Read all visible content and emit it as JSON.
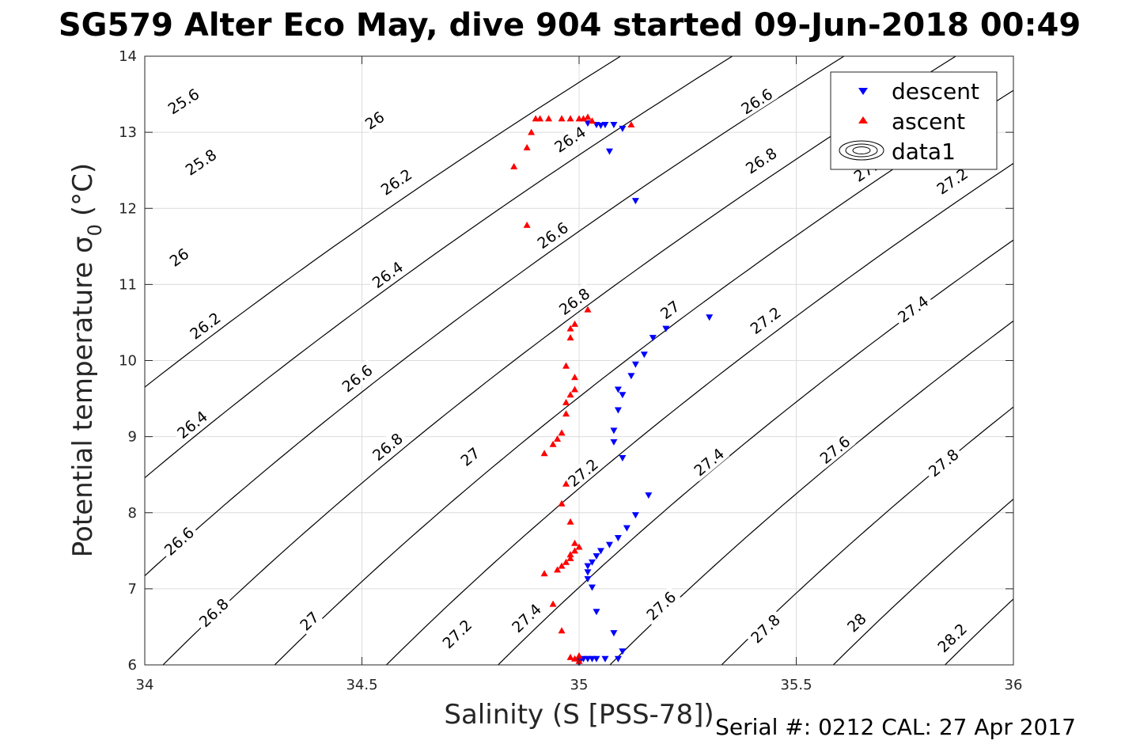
{
  "chart_data": {
    "type": "scatter",
    "title": "SG579 Alter Eco May, dive 904 started 09-Jun-2018 00:49",
    "xlabel": "Salinity (S [PSS-78])",
    "ylabel_main": "Potential temperature σ",
    "ylabel_sub": "0",
    "ylabel_unit": "(°C)",
    "footer": "Serial #: 0212  CAL: 27 Apr 2017",
    "xlim": [
      34,
      36
    ],
    "ylim": [
      6,
      14
    ],
    "xticks": [
      "34",
      "34.5",
      "35",
      "35.5",
      "36"
    ],
    "yticks": [
      "6",
      "7",
      "8",
      "9",
      "10",
      "11",
      "12",
      "13",
      "14"
    ],
    "grid": true,
    "legend_position": "top-right",
    "legend": [
      {
        "label": "descent",
        "marker": "triangle-down",
        "color": "#0000ff"
      },
      {
        "label": "ascent",
        "marker": "triangle-up",
        "color": "#ff0000"
      },
      {
        "label": "data1",
        "marker": "contour",
        "color": "#000000"
      }
    ],
    "contours": {
      "levels": [
        25.6,
        25.8,
        26,
        26.2,
        26.4,
        26.6,
        26.8,
        27,
        27.2,
        27.4,
        27.6,
        27.8,
        28,
        28.2
      ],
      "labels": [
        {
          "text": "25.6",
          "x": 34.09,
          "y": 13.4
        },
        {
          "text": "25.8",
          "x": 34.13,
          "y": 12.6
        },
        {
          "text": "26",
          "x": 34.08,
          "y": 11.35
        },
        {
          "text": "26.2",
          "x": 34.14,
          "y": 10.45
        },
        {
          "text": "26.4",
          "x": 34.11,
          "y": 9.15
        },
        {
          "text": "26.6",
          "x": 34.08,
          "y": 7.62
        },
        {
          "text": "26.8",
          "x": 34.16,
          "y": 6.68
        },
        {
          "text": "26",
          "x": 34.53,
          "y": 13.15
        },
        {
          "text": "26.2",
          "x": 34.58,
          "y": 12.34
        },
        {
          "text": "26.4",
          "x": 34.56,
          "y": 11.12
        },
        {
          "text": "26.6",
          "x": 34.49,
          "y": 9.76
        },
        {
          "text": "26.8",
          "x": 34.56,
          "y": 8.86
        },
        {
          "text": "27",
          "x": 34.38,
          "y": 6.57
        },
        {
          "text": "26.4",
          "x": 34.98,
          "y": 12.9
        },
        {
          "text": "26.6",
          "x": 34.94,
          "y": 11.64
        },
        {
          "text": "26.8",
          "x": 34.99,
          "y": 10.77
        },
        {
          "text": "27",
          "x": 34.75,
          "y": 8.73
        },
        {
          "text": "27.2",
          "x": 34.72,
          "y": 6.4
        },
        {
          "text": "26.6",
          "x": 35.41,
          "y": 13.4
        },
        {
          "text": "26.8",
          "x": 35.42,
          "y": 12.62
        },
        {
          "text": "27",
          "x": 35.21,
          "y": 10.66
        },
        {
          "text": "27.2",
          "x": 35.01,
          "y": 8.52
        },
        {
          "text": "27.4",
          "x": 34.88,
          "y": 6.61
        },
        {
          "text": "27.2",
          "x": 35.43,
          "y": 10.52
        },
        {
          "text": "27.4",
          "x": 35.3,
          "y": 8.66
        },
        {
          "text": "27.6",
          "x": 35.19,
          "y": 6.77
        },
        {
          "text": "27.4",
          "x": 35.77,
          "y": 10.67
        },
        {
          "text": "27.6",
          "x": 35.59,
          "y": 8.82
        },
        {
          "text": "27.8",
          "x": 35.43,
          "y": 6.47
        },
        {
          "text": "27.8",
          "x": 35.84,
          "y": 8.65
        },
        {
          "text": "28",
          "x": 35.64,
          "y": 6.55
        },
        {
          "text": "28.2",
          "x": 35.86,
          "y": 6.35
        },
        {
          "text": "27.2",
          "x": 35.86,
          "y": 12.35
        },
        {
          "text": "27.",
          "x": 35.66,
          "y": 12.48
        }
      ]
    },
    "series": [
      {
        "name": "descent",
        "marker": "triangle-down",
        "color": "#0000ff",
        "x": [
          35.02,
          35.04,
          35.05,
          35.06,
          35.08,
          35.1,
          35.07,
          35.13,
          35.3,
          35.2,
          35.17,
          35.15,
          35.13,
          35.12,
          35.09,
          35.1,
          35.09,
          35.08,
          35.08,
          35.1,
          35.16,
          35.13,
          35.11,
          35.09,
          35.07,
          35.05,
          35.04,
          35.03,
          35.02,
          35.02,
          35.02,
          35.03,
          35.04,
          35.08,
          35.1,
          35.09,
          35.06,
          35.04,
          35.03,
          35.02,
          35.01,
          35.0,
          35.0
        ],
        "y": [
          13.12,
          13.1,
          13.09,
          13.1,
          13.1,
          13.05,
          12.75,
          12.1,
          10.57,
          10.42,
          10.3,
          10.08,
          9.95,
          9.8,
          9.62,
          9.55,
          9.35,
          9.08,
          8.93,
          8.72,
          8.23,
          7.97,
          7.8,
          7.67,
          7.58,
          7.5,
          7.43,
          7.35,
          7.3,
          7.22,
          7.13,
          7.02,
          6.7,
          6.42,
          6.18,
          6.08,
          6.08,
          6.08,
          6.08,
          6.08,
          6.08,
          6.05,
          6.03
        ]
      },
      {
        "name": "ascent",
        "marker": "triangle-up",
        "color": "#ff0000",
        "x": [
          34.85,
          34.88,
          34.89,
          34.9,
          34.91,
          34.93,
          34.96,
          34.98,
          35.0,
          35.01,
          35.02,
          35.03,
          35.12,
          34.88,
          35.02,
          34.98,
          34.99,
          34.98,
          34.97,
          34.99,
          34.99,
          34.97,
          34.98,
          34.97,
          34.96,
          34.95,
          34.94,
          34.92,
          34.97,
          34.96,
          34.98,
          34.99,
          35.0,
          34.99,
          34.98,
          34.98,
          34.97,
          34.96,
          34.95,
          34.92,
          34.94,
          34.96,
          34.98,
          35.0,
          34.99,
          35.0
        ],
        "y": [
          12.55,
          12.8,
          13.0,
          13.18,
          13.18,
          13.18,
          13.18,
          13.18,
          13.18,
          13.18,
          13.2,
          13.15,
          13.1,
          11.78,
          10.67,
          10.42,
          10.48,
          10.3,
          9.93,
          9.78,
          9.62,
          9.45,
          9.55,
          9.3,
          9.05,
          8.97,
          8.9,
          8.78,
          8.38,
          8.12,
          7.88,
          7.6,
          7.55,
          7.5,
          7.45,
          7.4,
          7.35,
          7.3,
          7.25,
          7.2,
          6.8,
          6.45,
          6.1,
          6.12,
          6.08,
          6.05
        ]
      }
    ]
  }
}
